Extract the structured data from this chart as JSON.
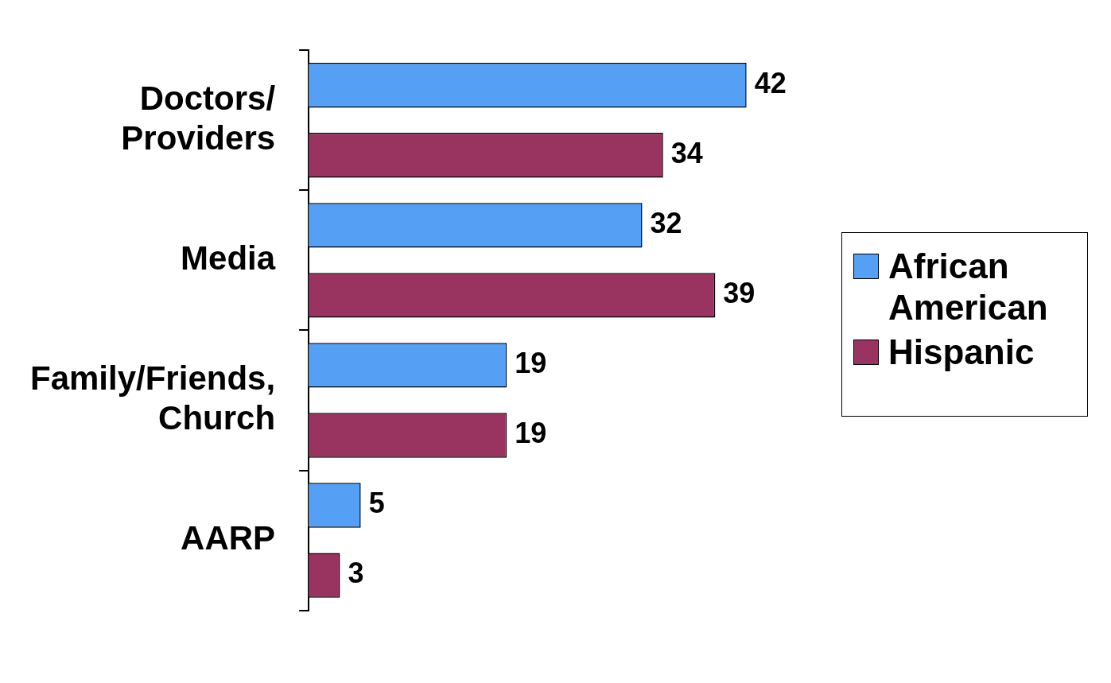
{
  "chart_data": {
    "type": "bar",
    "orientation": "horizontal",
    "categories": [
      "Doctors/ Providers",
      "Media",
      "Family/Friends, Church",
      "AARP"
    ],
    "series": [
      {
        "name": "African American",
        "color": "#559ff5",
        "values": [
          42,
          32,
          19,
          5
        ]
      },
      {
        "name": "Hispanic",
        "color": "#993360",
        "values": [
          34,
          39,
          19,
          3
        ]
      }
    ],
    "data_labels": true,
    "legend": "right",
    "grid": false
  }
}
